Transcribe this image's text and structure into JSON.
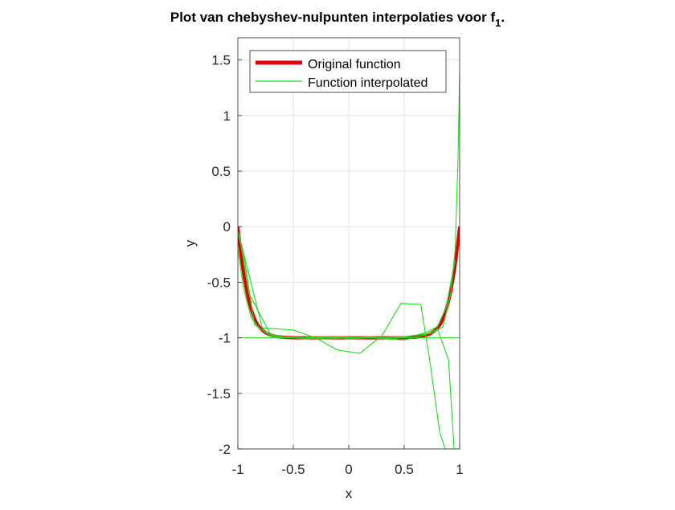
{
  "chart_data": {
    "type": "line",
    "title": "Plot van chebyshev-nulpunten interpolaties voor f",
    "title_subscript": "1",
    "title_suffix": ".",
    "xlabel": "x",
    "ylabel": "y",
    "xlim": [
      -1,
      1
    ],
    "ylim": [
      -2,
      1.7
    ],
    "xticks": [
      -1,
      -0.5,
      0,
      0.5,
      1
    ],
    "xtick_labels": [
      "-1",
      "-0.5",
      "0",
      "0.5",
      "1"
    ],
    "yticks": [
      -2,
      -1.5,
      -1,
      -0.5,
      0,
      0.5,
      1,
      1.5
    ],
    "ytick_labels": [
      "-2",
      "-1.5",
      "-1",
      "-0.5",
      "0",
      "0.5",
      "1",
      "1.5"
    ],
    "grid": true,
    "legend_placement": "top-left",
    "legend": [
      {
        "label": "Original function",
        "color": "#e00000",
        "style": "thick"
      },
      {
        "label": "Function interpolated",
        "color": "#22dd22",
        "style": "thin"
      }
    ],
    "series": [
      {
        "name": "Original function",
        "color": "#e00000",
        "x": [
          -1,
          -0.98,
          -0.96,
          -0.94,
          -0.92,
          -0.9,
          -0.88,
          -0.86,
          -0.84,
          -0.82,
          -0.8,
          -0.77,
          -0.74,
          -0.71,
          -0.68,
          -0.64,
          -0.6,
          -0.55,
          -0.5,
          -0.4,
          -0.3,
          -0.2,
          -0.1,
          0,
          0.1,
          0.2,
          0.3,
          0.4,
          0.5,
          0.55,
          0.6,
          0.64,
          0.68,
          0.71,
          0.74,
          0.77,
          0.8,
          0.82,
          0.84,
          0.86,
          0.88,
          0.9,
          0.92,
          0.94,
          0.96,
          0.98,
          1
        ],
        "y": [
          0,
          -0.18,
          -0.34,
          -0.47,
          -0.58,
          -0.67,
          -0.74,
          -0.8,
          -0.85,
          -0.885,
          -0.91,
          -0.94,
          -0.96,
          -0.973,
          -0.982,
          -0.99,
          -0.994,
          -0.997,
          -0.999,
          -1,
          -1,
          -1,
          -1,
          -1,
          -1,
          -1,
          -1,
          -1,
          -0.999,
          -0.997,
          -0.994,
          -0.99,
          -0.982,
          -0.973,
          -0.96,
          -0.94,
          -0.91,
          -0.885,
          -0.85,
          -0.8,
          -0.74,
          -0.67,
          -0.58,
          -0.47,
          -0.34,
          -0.18,
          0
        ]
      },
      {
        "name": "Function interpolated",
        "color": "#22dd22",
        "x": [
          -1,
          1
        ],
        "y": [
          -1,
          -1
        ]
      },
      {
        "name": "Function interpolated",
        "color": "#22dd22",
        "x": [
          -0.97,
          -0.78,
          -0.5,
          -0.3,
          -0.1,
          0.1,
          0.3,
          0.47,
          0.65,
          0.73,
          0.82,
          0.87,
          0.93
        ],
        "y": [
          -0.15,
          -0.91,
          -0.93,
          -1.0,
          -1.11,
          -1.14,
          -0.98,
          -0.69,
          -0.7,
          -1.2,
          -1.85,
          -2.0,
          -2.0
        ]
      },
      {
        "name": "Function interpolated",
        "color": "#22dd22",
        "x": [
          -0.99,
          -0.9,
          -0.7,
          -0.4,
          -0.1,
          0.2,
          0.5,
          0.7,
          0.8,
          0.9,
          0.95,
          1
        ],
        "y": [
          -0.05,
          -0.6,
          -0.98,
          -1.01,
          -0.99,
          -1.0,
          -1.02,
          -0.97,
          -0.92,
          -1.2,
          -2.0,
          -2.0
        ]
      },
      {
        "name": "Function interpolated",
        "color": "#22dd22",
        "x": [
          -1,
          -0.94,
          -0.85,
          -0.7,
          -0.5,
          -0.2,
          0,
          0.2,
          0.5,
          0.65,
          0.75,
          0.85,
          0.92,
          0.96,
          0.985,
          1
        ],
        "y": [
          -0.05,
          -0.3,
          -0.88,
          -0.99,
          -1.0,
          -0.99,
          -1.01,
          -1.0,
          -0.99,
          -0.97,
          -0.96,
          -0.9,
          -0.6,
          -0.2,
          0.6,
          1.38
        ]
      },
      {
        "name": "Function interpolated",
        "color": "#22dd22",
        "x": [
          -1,
          -0.95,
          -0.88,
          -0.8,
          -0.7,
          -0.6,
          -0.4,
          -0.2,
          0,
          0.2,
          0.4,
          0.6,
          0.7,
          0.8,
          0.88,
          0.93,
          0.96
        ],
        "y": [
          -0.2,
          -0.55,
          -0.82,
          -0.92,
          -0.97,
          -0.99,
          -1.0,
          -1.01,
          -1.0,
          -0.99,
          -1.01,
          -0.98,
          -0.95,
          -0.9,
          -0.72,
          -0.45,
          -0.3
        ]
      }
    ]
  }
}
